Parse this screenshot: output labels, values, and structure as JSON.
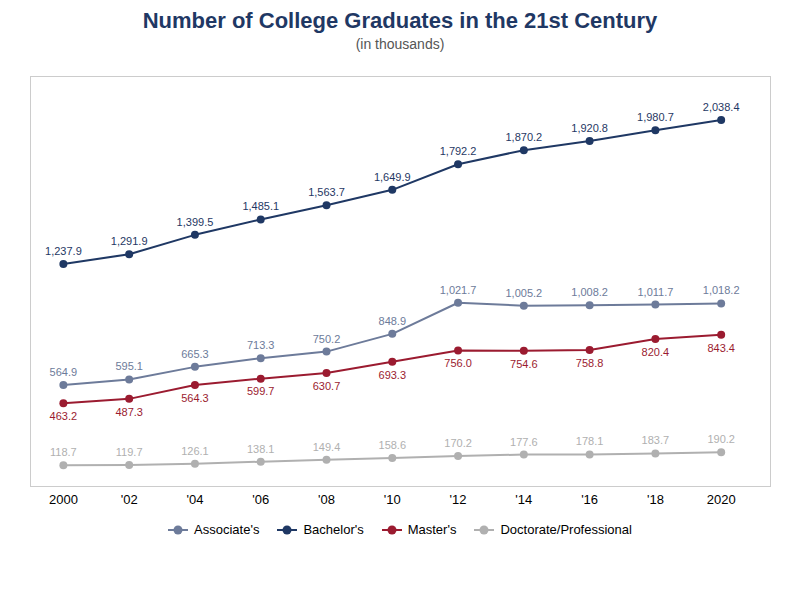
{
  "chart_data": {
    "type": "line",
    "title": "Number of College Graduates in the 21st Century",
    "subtitle": "(in thousands)",
    "x": [
      2000,
      2002,
      2004,
      2006,
      2008,
      2010,
      2012,
      2014,
      2016,
      2018,
      2020
    ],
    "xlim": [
      1999,
      2021.5
    ],
    "xticks": [
      2000,
      {
        "value": 2002,
        "label": "'02"
      },
      {
        "value": 2004,
        "label": "'04"
      },
      {
        "value": 2006,
        "label": "'06"
      },
      {
        "value": 2008,
        "label": "'08"
      },
      {
        "value": 2010,
        "label": "'10"
      },
      {
        "value": 2012,
        "label": "'12"
      },
      {
        "value": 2014,
        "label": "'14"
      },
      {
        "value": 2016,
        "label": "'16"
      },
      {
        "value": 2018,
        "label": "'18"
      },
      2020
    ],
    "ylim": [
      0,
      2280
    ],
    "yticks": [],
    "tick_labels": "x",
    "grid": false,
    "legend": "bottom",
    "data_labels": true,
    "series": [
      {
        "name": "Associate's",
        "color": "#6d7b9a",
        "marker": "o",
        "line_style": "solid",
        "values": [
          564.9,
          595.1,
          665.3,
          713.3,
          750.2,
          848.9,
          1021.7,
          1005.2,
          1008.2,
          1011.7,
          1018.2
        ],
        "value_labels": [
          "564.9",
          "595.1",
          "665.3",
          "713.3",
          "750.2",
          "848.9",
          "1,021.7",
          "1,005.2",
          "1,008.2",
          "1,011.7",
          "1,018.2"
        ]
      },
      {
        "name": "Bachelor's",
        "color": "#1f3864",
        "marker": "o",
        "line_style": "solid",
        "values": [
          1237.9,
          1291.9,
          1399.5,
          1485.1,
          1563.7,
          1649.9,
          1792.2,
          1870.2,
          1920.8,
          1980.7,
          2038.4
        ],
        "value_labels": [
          "1,237.9",
          "1,291.9",
          "1,399.5",
          "1,485.1",
          "1,563.7",
          "1,649.9",
          "1,792.2",
          "1,870.2",
          "1,920.8",
          "1,980.7",
          "2,038.4"
        ]
      },
      {
        "name": "Master's",
        "color": "#9b1b30",
        "marker": "o",
        "line_style": "solid",
        "values": [
          463.2,
          487.3,
          564.3,
          599.7,
          630.7,
          693.3,
          756.0,
          754.6,
          758.8,
          820.4,
          843.4
        ],
        "value_labels": [
          "463.2",
          "487.3",
          "564.3",
          "599.7",
          "630.7",
          "693.3",
          "756.0",
          "754.6",
          "758.8",
          "820.4",
          "843.4"
        ]
      },
      {
        "name": "Doctorate/Professional",
        "color": "#b0b0b0",
        "marker": "o",
        "line_style": "solid",
        "values": [
          118.7,
          119.7,
          126.1,
          138.1,
          149.4,
          158.6,
          170.2,
          177.6,
          178.1,
          183.7,
          190.2
        ],
        "value_labels": [
          "118.7",
          "119.7",
          "126.1",
          "138.1",
          "149.4",
          "158.6",
          "170.2",
          "177.6",
          "178.1",
          "183.7",
          "190.2"
        ]
      }
    ]
  }
}
